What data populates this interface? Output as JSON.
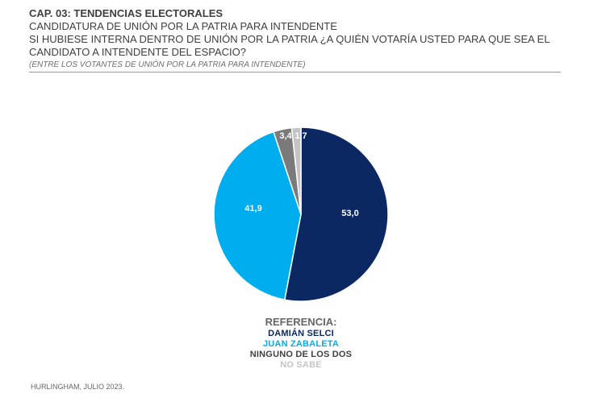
{
  "header": {
    "chapter": "CAP. 03: TENDENCIAS ELECTORALES",
    "topic": "CANDIDATURA DE UNIÓN POR LA PATRIA PARA INTENDENTE",
    "question_1": "SI HUBIESE INTERNA DENTRO DE UNIÓN POR LA PATRIA ¿A QUIÉN VOTARÍA USTED PARA QUE SEA EL",
    "question_2": "CANDIDATO A INTENDENTE DEL ESPACIO?",
    "note": "(ENTRE LOS VOTANTES DE UNIÓN POR LA PATRIA PARA INTENDENTE)"
  },
  "chart_data": {
    "type": "pie",
    "slices": [
      {
        "label": "DAMIÁN SELCI",
        "value": 53.0,
        "display": "53,0",
        "color": "#0b2862"
      },
      {
        "label": "JUAN ZABALETA",
        "value": 41.9,
        "display": "41,9",
        "color": "#00adef"
      },
      {
        "label": "NINGUNO DE LOS DOS",
        "value": 3.4,
        "display": "3,4",
        "color": "#7a7a7a"
      },
      {
        "label": "NO SABE",
        "value": 1.7,
        "display": "1,7",
        "color": "#c4c4c4"
      }
    ],
    "legend_title": "REFERENCIA:",
    "legend_placement": "bottom"
  },
  "legend": {
    "title": "REFERENCIA:",
    "items": [
      {
        "label": "DAMIÁN SELCI",
        "color": "#0b2862"
      },
      {
        "label": "JUAN ZABALETA",
        "color": "#00adef"
      },
      {
        "label": "NINGUNO DE LOS DOS",
        "color": "#3f3f3f"
      },
      {
        "label": "NO SABE",
        "color": "#c4c4c4"
      }
    ]
  },
  "footer": "HURLINGHAM, JULIO 2023."
}
